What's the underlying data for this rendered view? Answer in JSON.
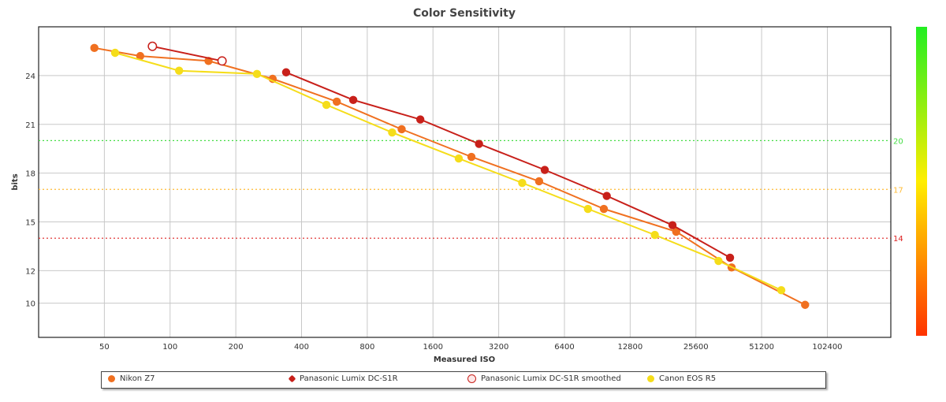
{
  "chart_data": {
    "type": "line",
    "title": "Color Sensitivity",
    "xlabel": "Measured ISO",
    "ylabel": "bits",
    "x_scale": "log2",
    "xlim": [
      25,
      200000
    ],
    "ylim": [
      7.9,
      27
    ],
    "x_ticks": [
      50,
      100,
      200,
      400,
      800,
      1600,
      3200,
      6400,
      12800,
      25600,
      51200,
      102400
    ],
    "x_tick_labels": [
      "50",
      "100",
      "200",
      "400",
      "800",
      "1600",
      "3200",
      "6400",
      "12800",
      "25600",
      "51200",
      "102400"
    ],
    "y_ticks": [
      10,
      12,
      15,
      18,
      21,
      24
    ],
    "y_tick_labels": [
      "10",
      "12",
      "15",
      "18",
      "21",
      "24"
    ],
    "reference_lines": [
      {
        "value": 20,
        "label": "20",
        "color": "#44dd44"
      },
      {
        "value": 17,
        "label": "17",
        "color": "#ffbb33"
      },
      {
        "value": 14,
        "label": "14",
        "color": "#dd2222"
      }
    ],
    "colorbar": {
      "colors": [
        "#ff3300",
        "#ffee00",
        "#22ee22"
      ]
    },
    "series": [
      {
        "name": "Nikon Z7",
        "color": "#f07020",
        "marker": "filled",
        "x": [
          45,
          73,
          150,
          295,
          580,
          1150,
          2400,
          4900,
          9700,
          20800,
          37300,
          81000
        ],
        "y": [
          25.7,
          25.2,
          24.9,
          23.8,
          22.4,
          20.7,
          19.0,
          17.5,
          15.8,
          14.4,
          12.2,
          9.9
        ]
      },
      {
        "name": "Panasonic Lumix DC-S1R",
        "color": "#c8201a",
        "marker": "filled",
        "x": [
          340,
          690,
          1400,
          2600,
          5200,
          10000,
          20000,
          36700
        ],
        "y": [
          24.2,
          22.5,
          21.3,
          19.8,
          18.2,
          16.6,
          14.8,
          12.8
        ]
      },
      {
        "name": "Panasonic Lumix DC-S1R smoothed",
        "color": "#c8201a",
        "marker": "hollow",
        "x": [
          83,
          173
        ],
        "y": [
          25.8,
          24.9
        ]
      },
      {
        "name": "Canon EOS R5",
        "color": "#f5dd1a",
        "marker": "filled",
        "x": [
          56,
          110,
          250,
          520,
          1040,
          2100,
          4100,
          8200,
          16600,
          32500,
          63000
        ],
        "y": [
          25.4,
          24.3,
          24.1,
          22.2,
          20.5,
          18.9,
          17.4,
          15.8,
          14.2,
          12.6,
          10.8
        ]
      }
    ]
  },
  "legend": {
    "items": [
      {
        "label": "Nikon Z7",
        "color": "#f07020",
        "shape": "circle"
      },
      {
        "label": "Panasonic Lumix DC-S1R",
        "color": "#c8201a",
        "shape": "diamond"
      },
      {
        "label": "Panasonic Lumix DC-S1R smoothed",
        "color": "#c8201a",
        "shape": "hollow"
      },
      {
        "label": "Canon EOS R5",
        "color": "#f5dd1a",
        "shape": "circle"
      }
    ]
  }
}
